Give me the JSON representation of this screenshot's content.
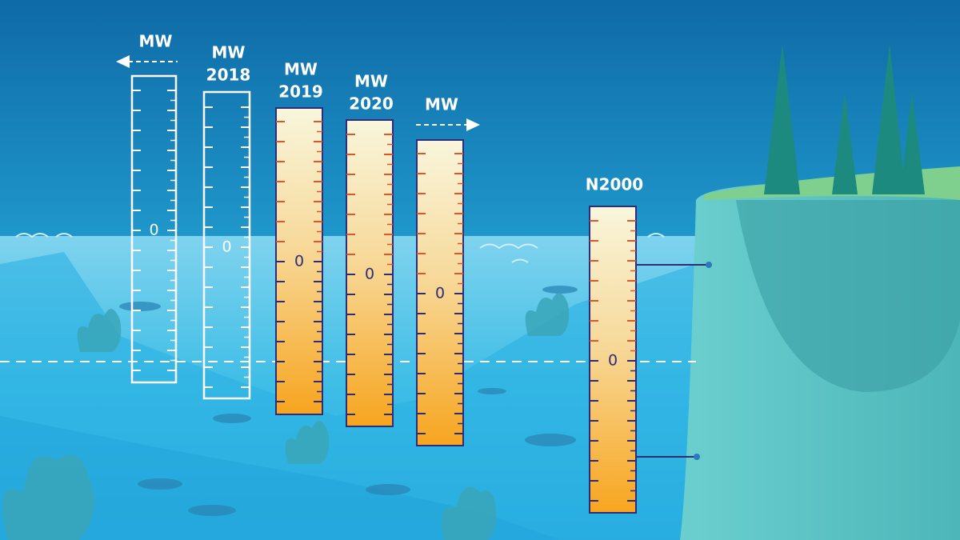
{
  "gauges": [
    {
      "title_lines": [
        "MW"
      ],
      "zero_label": "0"
    },
    {
      "title_lines": [
        "MW",
        "2018"
      ],
      "zero_label": "0"
    },
    {
      "title_lines": [
        "MW",
        "2019"
      ],
      "zero_label": "0"
    },
    {
      "title_lines": [
        "MW",
        "2020"
      ],
      "zero_label": "0"
    },
    {
      "title_lines": [
        "MW"
      ],
      "zero_label": "0"
    },
    {
      "title_lines": [
        "N2000"
      ],
      "zero_label": "0"
    }
  ]
}
